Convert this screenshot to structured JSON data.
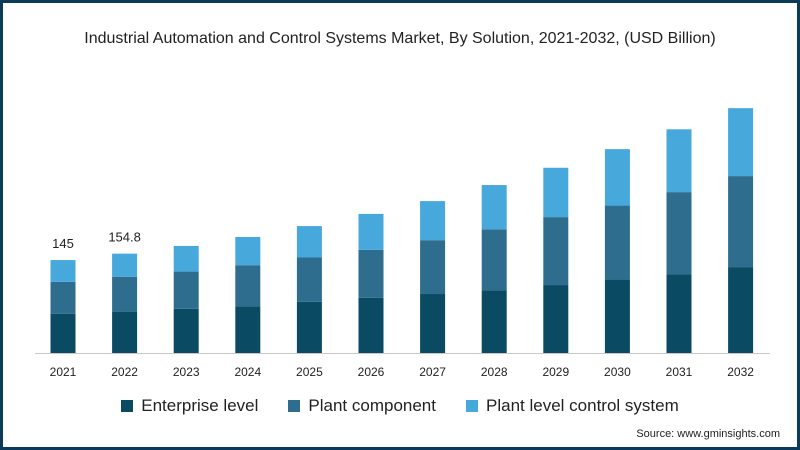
{
  "chart_data": {
    "type": "bar",
    "stacked": true,
    "title": "Industrial Automation and Control Systems Market, By Solution, 2021-2032, (USD Billion)",
    "xlabel": "",
    "ylabel": "",
    "ylim": [
      0,
      400
    ],
    "categories": [
      "2021",
      "2022",
      "2023",
      "2024",
      "2025",
      "2026",
      "2027",
      "2028",
      "2029",
      "2030",
      "2031",
      "2032"
    ],
    "series": [
      {
        "name": "Enterprise level",
        "color": "#0a4a63",
        "values": [
          61,
          64,
          69,
          73,
          80,
          86,
          92,
          98,
          106,
          115,
          123,
          134
        ]
      },
      {
        "name": "Plant component",
        "color": "#2e6d8e",
        "values": [
          50,
          55,
          58,
          64,
          69,
          75,
          84,
          95,
          106,
          115,
          128,
          142
        ]
      },
      {
        "name": "Plant level control system",
        "color": "#47a8dc",
        "values": [
          34,
          36,
          40,
          44,
          49,
          56,
          61,
          69,
          77,
          88,
          98,
          106
        ]
      }
    ],
    "data_labels": [
      {
        "category": "2021",
        "text": "145"
      },
      {
        "category": "2022",
        "text": "154.8"
      }
    ],
    "grid": false,
    "legend_position": "bottom"
  },
  "source": "Source: www.gminsights.com"
}
